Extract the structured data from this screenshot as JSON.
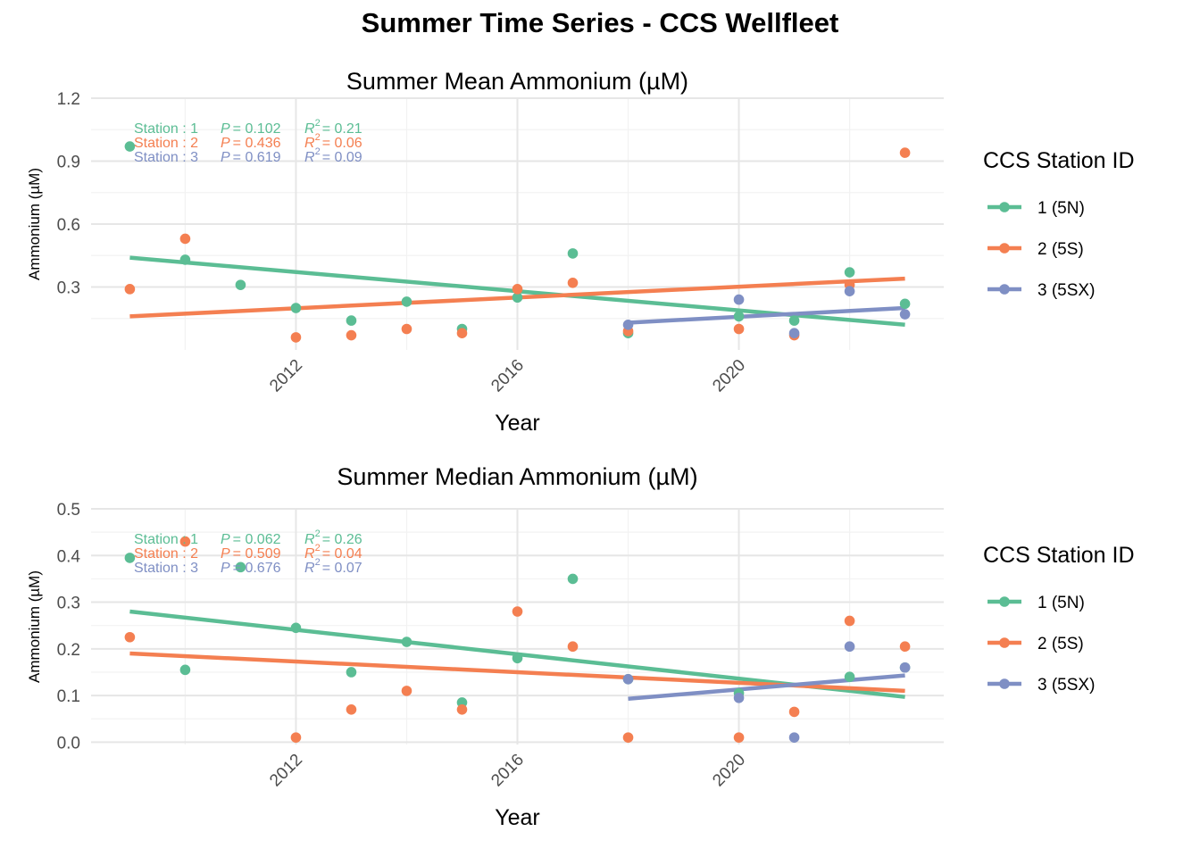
{
  "title": "Summer Time Series - CCS Wellfleet",
  "colors": {
    "1": "#5BBD94",
    "2": "#F47F51",
    "3": "#7F8FC4",
    "grid": "#E6E6E6"
  },
  "legend": {
    "title": "CCS Station ID",
    "items": [
      {
        "station": "1",
        "label": "1 (5N)"
      },
      {
        "station": "2",
        "label": "2 (5S)"
      },
      {
        "station": "3",
        "label": "3 (5SX)"
      }
    ]
  },
  "chart_data": [
    {
      "type": "scatter",
      "title": "Summer Mean Ammonium (µM)",
      "xlabel": "Year",
      "ylabel": "Ammonium (µM)",
      "xlim": [
        2008.3,
        2023.7
      ],
      "ylim": [
        0.0,
        1.2
      ],
      "x_ticks": [
        2012,
        2016,
        2020
      ],
      "y_ticks": [
        0.3,
        0.6,
        0.9,
        1.2
      ],
      "y_tick_labels": [
        "0.3",
        "0.6",
        "0.9",
        "1.2"
      ],
      "series": [
        {
          "station": "1",
          "x": [
            2009,
            2010,
            2011,
            2012,
            2013,
            2014,
            2015,
            2016,
            2017,
            2018,
            2020,
            2021,
            2022,
            2023
          ],
          "y": [
            0.97,
            0.43,
            0.31,
            0.2,
            0.14,
            0.23,
            0.1,
            0.25,
            0.46,
            0.08,
            0.16,
            0.14,
            0.37,
            0.22
          ],
          "trend": [
            [
              2009,
              0.44
            ],
            [
              2023,
              0.12
            ]
          ]
        },
        {
          "station": "2",
          "x": [
            2009,
            2010,
            2012,
            2013,
            2014,
            2015,
            2016,
            2017,
            2018,
            2020,
            2021,
            2022,
            2023
          ],
          "y": [
            0.29,
            0.53,
            0.06,
            0.07,
            0.1,
            0.08,
            0.29,
            0.32,
            0.09,
            0.1,
            0.07,
            0.31,
            0.94
          ],
          "trend": [
            [
              2009,
              0.16
            ],
            [
              2023,
              0.34
            ]
          ]
        },
        {
          "station": "3",
          "x": [
            2018,
            2020,
            2021,
            2022,
            2023
          ],
          "y": [
            0.12,
            0.24,
            0.08,
            0.28,
            0.17
          ],
          "trend": [
            [
              2018,
              0.13
            ],
            [
              2023,
              0.2
            ]
          ]
        }
      ],
      "annotations": [
        {
          "station": "1",
          "prefix": "Station : 1",
          "p": "= 0.102",
          "r2": "= 0.21"
        },
        {
          "station": "2",
          "prefix": "Station : 2",
          "p": "= 0.436",
          "r2": "= 0.06"
        },
        {
          "station": "3",
          "prefix": "Station : 3",
          "p": "= 0.619",
          "r2": "= 0.09"
        }
      ]
    },
    {
      "type": "scatter",
      "title": "Summer Median Ammonium (µM)",
      "xlabel": "Year",
      "ylabel": "Ammonium (µM)",
      "xlim": [
        2008.3,
        2023.7
      ],
      "ylim": [
        -0.005,
        0.5
      ],
      "x_ticks": [
        2012,
        2016,
        2020
      ],
      "y_ticks": [
        0.0,
        0.1,
        0.2,
        0.3,
        0.4,
        0.5
      ],
      "y_tick_labels": [
        "0.0",
        "0.1",
        "0.2",
        "0.3",
        "0.4",
        "0.5"
      ],
      "series": [
        {
          "station": "1",
          "x": [
            2009,
            2010,
            2011,
            2012,
            2013,
            2014,
            2015,
            2016,
            2017,
            2018,
            2020,
            2022,
            2023
          ],
          "y": [
            0.395,
            0.155,
            0.375,
            0.245,
            0.15,
            0.215,
            0.085,
            0.18,
            0.35,
            0.135,
            0.105,
            0.14,
            0.16
          ],
          "trend": [
            [
              2009,
              0.28
            ],
            [
              2023,
              0.097
            ]
          ]
        },
        {
          "station": "2",
          "x": [
            2009,
            2010,
            2012,
            2013,
            2014,
            2015,
            2016,
            2017,
            2018,
            2020,
            2021,
            2022,
            2023
          ],
          "y": [
            0.225,
            0.43,
            0.01,
            0.07,
            0.11,
            0.07,
            0.28,
            0.205,
            0.01,
            0.01,
            0.065,
            0.26,
            0.205
          ],
          "trend": [
            [
              2009,
              0.19
            ],
            [
              2023,
              0.11
            ]
          ]
        },
        {
          "station": "3",
          "x": [
            2018,
            2020,
            2021,
            2022,
            2023
          ],
          "y": [
            0.135,
            0.095,
            0.01,
            0.205,
            0.16
          ],
          "trend": [
            [
              2018,
              0.093
            ],
            [
              2023,
              0.143
            ]
          ]
        }
      ],
      "annotations": [
        {
          "station": "1",
          "prefix": "Station : 1",
          "p": "= 0.062",
          "r2": "= 0.26"
        },
        {
          "station": "2",
          "prefix": "Station : 2",
          "p": "= 0.509",
          "r2": "= 0.04"
        },
        {
          "station": "3",
          "prefix": "Station : 3",
          "p": "= 0.676",
          "r2": "= 0.07"
        }
      ]
    }
  ]
}
